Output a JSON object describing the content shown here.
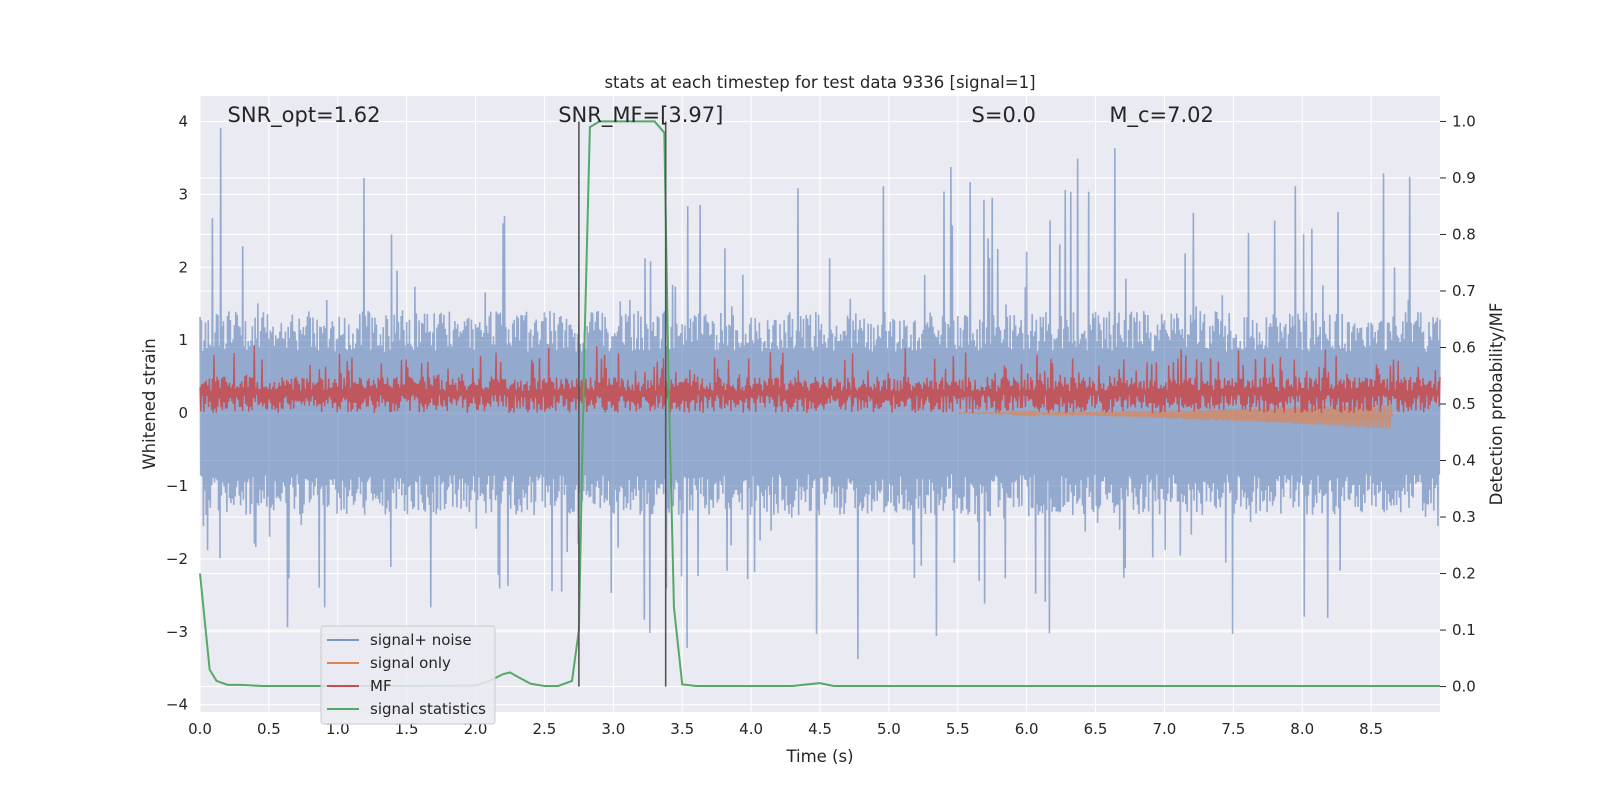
{
  "chart_data": {
    "type": "line",
    "title": "stats at each timestep for test data 9336 [signal=1]",
    "xlabel": "Time (s)",
    "ylabel_left": "Whitened strain",
    "ylabel_right": "Detection probability/MF",
    "xlim": [
      0.0,
      9.0
    ],
    "ylim_left": [
      -4.1,
      4.35
    ],
    "ylim_right": [
      -0.045,
      1.045
    ],
    "x_ticks": [
      "0.0",
      "0.5",
      "1.0",
      "1.5",
      "2.0",
      "2.5",
      "3.0",
      "3.5",
      "4.0",
      "4.5",
      "5.0",
      "5.5",
      "6.0",
      "6.5",
      "7.0",
      "7.5",
      "8.0",
      "8.5"
    ],
    "y_ticks_left": [
      "−4",
      "−3",
      "−2",
      "−1",
      "0",
      "1",
      "2",
      "3",
      "4"
    ],
    "y_ticks_right": [
      "0.0",
      "0.1",
      "0.2",
      "0.3",
      "0.4",
      "0.5",
      "0.6",
      "0.7",
      "0.8",
      "0.9",
      "1.0"
    ],
    "grid": true,
    "legend_position": "lower-left",
    "annotations": [
      {
        "text": "SNR_opt=1.62",
        "x": 0.2,
        "y": 4.05
      },
      {
        "text": "SNR_MF=[3.97]",
        "x": 2.6,
        "y": 4.05
      },
      {
        "text": "S=0.0",
        "x": 5.6,
        "y": 4.05
      },
      {
        "text": "M_c=7.02",
        "x": 6.6,
        "y": 4.05
      }
    ],
    "vertical_lines": [
      2.75,
      3.38
    ],
    "series": [
      {
        "name": "signal+ noise",
        "color": "#4c72b0",
        "axis": "left",
        "kind": "noise",
        "band_min": -1.4,
        "band_max": 1.4,
        "peak_max": 4.0,
        "peak_min": -3.4
      },
      {
        "name": "signal only",
        "color": "#dd8452",
        "axis": "left",
        "kind": "chirp",
        "x_start": 5.5,
        "x_end": 8.65,
        "amp_end": 0.17
      },
      {
        "name": "MF",
        "color": "#c44e52",
        "axis": "left",
        "kind": "mf",
        "baseline": 0.3,
        "spread_min": 0.0,
        "spread_max": 0.95
      },
      {
        "name": "signal statistics",
        "color": "#55a868",
        "axis": "right",
        "x": [
          0.0,
          0.07,
          0.12,
          0.2,
          0.3,
          0.45,
          0.6,
          1.0,
          1.5,
          2.0,
          2.1,
          2.2,
          2.25,
          2.3,
          2.4,
          2.5,
          2.6,
          2.7,
          2.75,
          2.79,
          2.83,
          2.9,
          3.0,
          3.2,
          3.3,
          3.37,
          3.4,
          3.44,
          3.5,
          3.6,
          4.0,
          4.3,
          4.45,
          4.5,
          4.6,
          5.0,
          6.0,
          7.0,
          8.0,
          9.0
        ],
        "y": [
          0.2,
          0.03,
          0.01,
          0.003,
          0.003,
          0.001,
          0.001,
          0.001,
          0.001,
          0.002,
          0.01,
          0.022,
          0.025,
          0.018,
          0.005,
          0.001,
          0.001,
          0.01,
          0.1,
          0.6,
          0.99,
          1.0,
          1.0,
          1.0,
          1.0,
          0.98,
          0.55,
          0.14,
          0.004,
          0.001,
          0.001,
          0.001,
          0.005,
          0.006,
          0.001,
          0.001,
          0.001,
          0.001,
          0.001,
          0.001
        ]
      }
    ]
  }
}
